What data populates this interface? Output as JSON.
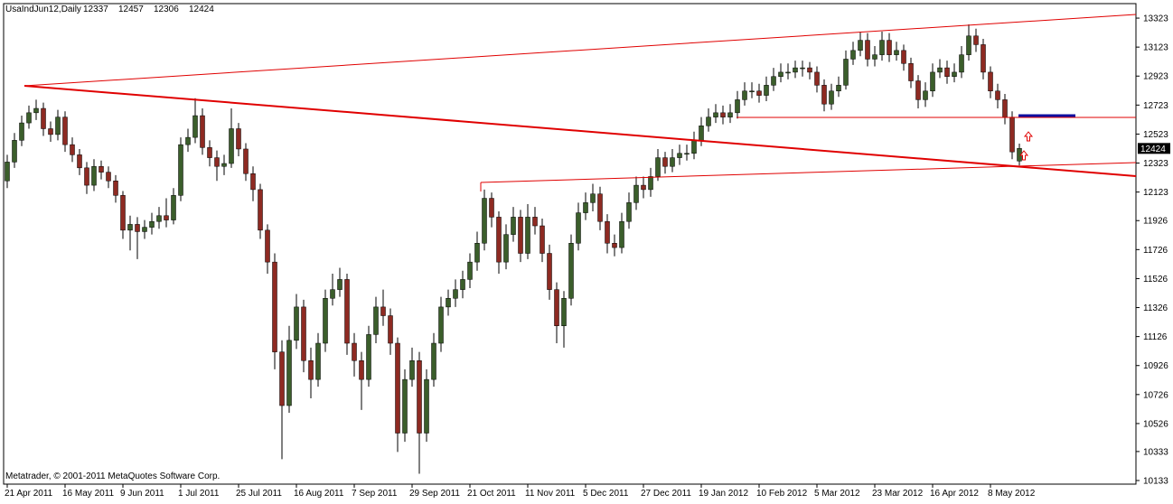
{
  "chart_data": {
    "type": "candlestick",
    "title": "UsaIndJun12,Daily",
    "footer": "Metatrader, © 2001-2011 MetaQuotes Software Corp.",
    "up_color": "#3b5e2b",
    "down_color": "#8e2a22",
    "ylim": [
      10108,
      13423
    ],
    "yticks": [
      13323,
      13123,
      12923,
      12723,
      12523,
      12323,
      12123,
      11926,
      11726,
      11526,
      11326,
      11126,
      10926,
      10726,
      10526,
      10333,
      10133
    ],
    "categories": [
      "21 Apr 2011",
      null,
      null,
      null,
      null,
      null,
      null,
      null,
      "16 May 2011",
      null,
      null,
      null,
      null,
      null,
      null,
      null,
      "9 Jun 2011",
      null,
      null,
      null,
      null,
      null,
      null,
      null,
      "1 Jul 2011",
      null,
      null,
      null,
      null,
      null,
      null,
      null,
      "25 Jul 2011",
      null,
      null,
      null,
      null,
      null,
      null,
      null,
      "16 Aug 2011",
      null,
      null,
      null,
      null,
      null,
      null,
      null,
      "7 Sep 2011",
      null,
      null,
      null,
      null,
      null,
      null,
      null,
      "29 Sep 2011",
      null,
      null,
      null,
      null,
      null,
      null,
      null,
      "21 Oct 2011",
      null,
      null,
      null,
      null,
      null,
      null,
      null,
      "11 Nov 2011",
      null,
      null,
      null,
      null,
      null,
      null,
      null,
      "5 Dec 2011",
      null,
      null,
      null,
      null,
      null,
      null,
      null,
      "27 Dec 2011",
      null,
      null,
      null,
      null,
      null,
      null,
      null,
      "19 Jan 2012",
      null,
      null,
      null,
      null,
      null,
      null,
      null,
      "10 Feb 2012",
      null,
      null,
      null,
      null,
      null,
      null,
      null,
      "5 Mar 2012",
      null,
      null,
      null,
      null,
      null,
      null,
      null,
      "23 Mar 2012",
      null,
      null,
      null,
      null,
      null,
      null,
      null,
      "16 Apr 2012",
      null,
      null,
      null,
      null,
      null,
      null,
      null,
      "8 May 2012",
      null,
      null,
      null,
      null
    ],
    "ohlc": [
      [
        12200,
        12380,
        12150,
        12330
      ],
      [
        12330,
        12530,
        12290,
        12480
      ],
      [
        12480,
        12650,
        12440,
        12600
      ],
      [
        12600,
        12720,
        12560,
        12670
      ],
      [
        12670,
        12760,
        12620,
        12700
      ],
      [
        12700,
        12740,
        12510,
        12560
      ],
      [
        12560,
        12610,
        12470,
        12520
      ],
      [
        12520,
        12690,
        12480,
        12640
      ],
      [
        12640,
        12680,
        12400,
        12450
      ],
      [
        12450,
        12500,
        12330,
        12380
      ],
      [
        12380,
        12420,
        12240,
        12290
      ],
      [
        12290,
        12330,
        12110,
        12170
      ],
      [
        12170,
        12350,
        12130,
        12300
      ],
      [
        12300,
        12340,
        12210,
        12260
      ],
      [
        12260,
        12300,
        12150,
        12200
      ],
      [
        12200,
        12240,
        12050,
        12100
      ],
      [
        12100,
        12130,
        11800,
        11860
      ],
      [
        11860,
        11960,
        11720,
        11900
      ],
      [
        11900,
        11950,
        11660,
        11850
      ],
      [
        11850,
        11930,
        11800,
        11880
      ],
      [
        11880,
        11980,
        11830,
        11920
      ],
      [
        11920,
        12020,
        11870,
        11960
      ],
      [
        11960,
        12080,
        11880,
        11930
      ],
      [
        11930,
        12150,
        11900,
        12100
      ],
      [
        12100,
        12500,
        12060,
        12450
      ],
      [
        12450,
        12560,
        12400,
        12500
      ],
      [
        12500,
        12770,
        12460,
        12650
      ],
      [
        12650,
        12700,
        12380,
        12430
      ],
      [
        12430,
        12480,
        12300,
        12360
      ],
      [
        12360,
        12410,
        12200,
        12300
      ],
      [
        12300,
        12380,
        12240,
        12320
      ],
      [
        12320,
        12700,
        12290,
        12560
      ],
      [
        12560,
        12600,
        12370,
        12420
      ],
      [
        12420,
        12460,
        12200,
        12250
      ],
      [
        12250,
        12300,
        12060,
        12140
      ],
      [
        12140,
        12180,
        11800,
        11860
      ],
      [
        11860,
        11900,
        11560,
        11640
      ],
      [
        11640,
        11700,
        10900,
        11020
      ],
      [
        11020,
        11100,
        10280,
        10650
      ],
      [
        10650,
        11200,
        10600,
        11100
      ],
      [
        11100,
        11420,
        11040,
        11330
      ],
      [
        11330,
        11380,
        10880,
        10960
      ],
      [
        10960,
        11050,
        10700,
        10830
      ],
      [
        10830,
        11150,
        10780,
        11080
      ],
      [
        11080,
        11450,
        11020,
        11390
      ],
      [
        11390,
        11560,
        11340,
        11450
      ],
      [
        11450,
        11600,
        11400,
        11520
      ],
      [
        11520,
        11560,
        11000,
        11080
      ],
      [
        11080,
        11150,
        10850,
        10960
      ],
      [
        10960,
        11020,
        10620,
        10830
      ],
      [
        10830,
        11200,
        10780,
        11140
      ],
      [
        11140,
        11400,
        11080,
        11330
      ],
      [
        11330,
        11450,
        11200,
        11270
      ],
      [
        11270,
        11320,
        11000,
        11080
      ],
      [
        11080,
        11120,
        10330,
        10460
      ],
      [
        10460,
        10900,
        10400,
        10830
      ],
      [
        10830,
        11050,
        10780,
        10960
      ],
      [
        10960,
        11020,
        10180,
        10460
      ],
      [
        10460,
        10900,
        10400,
        10830
      ],
      [
        10830,
        11150,
        10780,
        11080
      ],
      [
        11080,
        11400,
        11020,
        11330
      ],
      [
        11330,
        11450,
        11270,
        11390
      ],
      [
        11390,
        11520,
        11330,
        11450
      ],
      [
        11450,
        11580,
        11390,
        11520
      ],
      [
        11520,
        11700,
        11460,
        11640
      ],
      [
        11640,
        11850,
        11580,
        11770
      ],
      [
        11770,
        12140,
        11720,
        12080
      ],
      [
        12080,
        12120,
        11880,
        11950
      ],
      [
        11950,
        11990,
        11560,
        11640
      ],
      [
        11640,
        11900,
        11590,
        11830
      ],
      [
        11830,
        12020,
        11780,
        11950
      ],
      [
        11950,
        12000,
        11640,
        11700
      ],
      [
        11700,
        12040,
        11660,
        11950
      ],
      [
        11950,
        12020,
        11830,
        11890
      ],
      [
        11890,
        11940,
        11640,
        11700
      ],
      [
        11700,
        11760,
        11380,
        11450
      ],
      [
        11450,
        11500,
        11080,
        11200
      ],
      [
        11200,
        11440,
        11050,
        11390
      ],
      [
        11390,
        11830,
        11340,
        11770
      ],
      [
        11770,
        12050,
        11720,
        11980
      ],
      [
        11980,
        12120,
        11930,
        12050
      ],
      [
        12050,
        12180,
        11990,
        12110
      ],
      [
        12110,
        12160,
        11860,
        11920
      ],
      [
        11920,
        11970,
        11700,
        11770
      ],
      [
        11770,
        11830,
        11680,
        11740
      ],
      [
        11740,
        11980,
        11700,
        11920
      ],
      [
        11920,
        12120,
        11870,
        12050
      ],
      [
        12050,
        12230,
        12000,
        12170
      ],
      [
        12170,
        12230,
        12080,
        12140
      ],
      [
        12140,
        12290,
        12090,
        12230
      ],
      [
        12230,
        12420,
        12200,
        12360
      ],
      [
        12360,
        12400,
        12250,
        12300
      ],
      [
        12300,
        12420,
        12260,
        12360
      ],
      [
        12360,
        12450,
        12310,
        12390
      ],
      [
        12390,
        12450,
        12340,
        12390
      ],
      [
        12390,
        12540,
        12350,
        12480
      ],
      [
        12480,
        12640,
        12440,
        12580
      ],
      [
        12580,
        12700,
        12540,
        12640
      ],
      [
        12640,
        12730,
        12600,
        12670
      ],
      [
        12670,
        12720,
        12590,
        12640
      ],
      [
        12640,
        12730,
        12600,
        12670
      ],
      [
        12670,
        12820,
        12630,
        12760
      ],
      [
        12760,
        12880,
        12720,
        12820
      ],
      [
        12820,
        12880,
        12770,
        12820
      ],
      [
        12820,
        12870,
        12740,
        12790
      ],
      [
        12790,
        12920,
        12750,
        12860
      ],
      [
        12860,
        12980,
        12820,
        12920
      ],
      [
        12920,
        13010,
        12880,
        12950
      ],
      [
        12950,
        13010,
        12900,
        12950
      ],
      [
        12950,
        13030,
        12910,
        12980
      ],
      [
        12980,
        13030,
        12920,
        12980
      ],
      [
        12980,
        13020,
        12900,
        12950
      ],
      [
        12950,
        12990,
        12810,
        12860
      ],
      [
        12860,
        12900,
        12680,
        12730
      ],
      [
        12730,
        12870,
        12690,
        12820
      ],
      [
        12820,
        12920,
        12780,
        12860
      ],
      [
        12860,
        13100,
        12830,
        13040
      ],
      [
        13040,
        13160,
        13000,
        13100
      ],
      [
        13100,
        13230,
        13060,
        13170
      ],
      [
        13170,
        13220,
        12990,
        13040
      ],
      [
        13040,
        13130,
        12990,
        13070
      ],
      [
        13070,
        13230,
        13030,
        13170
      ],
      [
        13170,
        13220,
        13020,
        13070
      ],
      [
        13070,
        13160,
        13030,
        13100
      ],
      [
        13100,
        13140,
        12960,
        13010
      ],
      [
        13010,
        13050,
        12840,
        12890
      ],
      [
        12890,
        12930,
        12700,
        12760
      ],
      [
        12760,
        12880,
        12710,
        12820
      ],
      [
        12820,
        13010,
        12780,
        12950
      ],
      [
        12950,
        13040,
        12910,
        12980
      ],
      [
        12980,
        13030,
        12870,
        12920
      ],
      [
        12920,
        13010,
        12880,
        12950
      ],
      [
        12950,
        13130,
        12910,
        13070
      ],
      [
        13070,
        13280,
        13030,
        13200
      ],
      [
        13200,
        13250,
        13090,
        13140
      ],
      [
        13140,
        13180,
        12900,
        12950
      ],
      [
        12950,
        12990,
        12770,
        12820
      ],
      [
        12820,
        12870,
        12700,
        12760
      ],
      [
        12760,
        12800,
        12590,
        12640
      ],
      [
        12640,
        12680,
        12350,
        12400
      ],
      [
        12337,
        12457,
        12306,
        12424
      ]
    ]
  }
}
